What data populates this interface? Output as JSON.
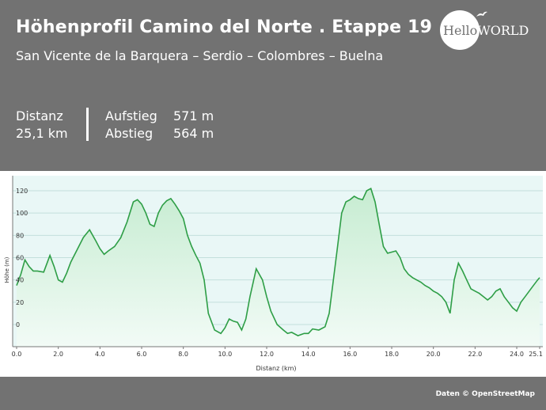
{
  "header": {
    "title": "Höhenprofil Camino del Norte . Etappe 19",
    "subtitle": "San Vicente de la Barquera – Serdio – Colombres – Buelna",
    "stats": {
      "distance_label": "Distanz",
      "distance_value": "25,1 km",
      "ascent_label": "Aufstieg",
      "ascent_value": "571 m",
      "descent_label": "Abstieg",
      "descent_value": "564 m"
    },
    "logo": {
      "hello": "Hello",
      "world": "WORLD"
    }
  },
  "footer": {
    "credit": "Daten © OpenStreetMap"
  },
  "colors": {
    "background_gray": "#727272",
    "line": "#2e9e46",
    "fill_top": "#c6ecd1",
    "plot_bg": "#e9f7f6"
  },
  "chart_data": {
    "type": "area",
    "title": "",
    "xlabel": "Distanz  (km)",
    "ylabel": "Höhe (m)",
    "xlim": [
      0,
      25.1
    ],
    "ylim": [
      -20,
      130
    ],
    "x_ticks": [
      0.0,
      2.0,
      4.0,
      6.0,
      8.0,
      10.0,
      12.0,
      14.0,
      16.0,
      18.0,
      20.0,
      22.0,
      24.0,
      25.1
    ],
    "x_tick_labels": [
      "0.0",
      "2.0",
      "4.0",
      "6.0",
      "8.0",
      "10.0",
      "12.0",
      "14.0",
      "16.0",
      "18.0",
      "20.0",
      "22.0",
      "24.0",
      "25.1"
    ],
    "y_ticks": [
      0,
      20,
      40,
      60,
      80,
      100,
      120
    ],
    "y_tick_labels": [
      "0",
      "20",
      "40",
      "60",
      "80",
      "100",
      "120"
    ],
    "grid": true,
    "series": [
      {
        "name": "",
        "x": [
          0.0,
          0.2,
          0.4,
          0.6,
          0.8,
          1.0,
          1.3,
          1.6,
          1.8,
          2.0,
          2.2,
          2.4,
          2.6,
          2.9,
          3.2,
          3.5,
          3.8,
          4.0,
          4.2,
          4.4,
          4.7,
          5.0,
          5.3,
          5.6,
          5.8,
          6.0,
          6.2,
          6.4,
          6.6,
          6.8,
          7.0,
          7.2,
          7.4,
          7.6,
          7.8,
          8.0,
          8.2,
          8.4,
          8.6,
          8.8,
          9.0,
          9.2,
          9.5,
          9.8,
          10.0,
          10.2,
          10.4,
          10.6,
          10.8,
          11.0,
          11.2,
          11.5,
          11.8,
          12.0,
          12.2,
          12.5,
          12.8,
          13.0,
          13.2,
          13.5,
          13.8,
          14.0,
          14.2,
          14.5,
          14.8,
          15.0,
          15.2,
          15.4,
          15.6,
          15.8,
          16.0,
          16.2,
          16.4,
          16.6,
          16.8,
          17.0,
          17.2,
          17.4,
          17.6,
          17.8,
          18.0,
          18.2,
          18.4,
          18.6,
          18.8,
          19.0,
          19.2,
          19.4,
          19.6,
          19.8,
          20.0,
          20.2,
          20.4,
          20.6,
          20.8,
          21.0,
          21.2,
          21.4,
          21.6,
          21.8,
          22.0,
          22.2,
          22.4,
          22.6,
          22.8,
          23.0,
          23.2,
          23.4,
          23.6,
          23.8,
          24.0,
          24.2,
          24.4,
          24.6,
          24.8,
          25.0,
          25.1
        ],
        "y": [
          35,
          45,
          58,
          52,
          48,
          48,
          47,
          62,
          52,
          40,
          38,
          46,
          56,
          67,
          78,
          85,
          75,
          68,
          63,
          66,
          70,
          78,
          92,
          110,
          112,
          108,
          100,
          90,
          88,
          100,
          107,
          111,
          113,
          108,
          102,
          95,
          80,
          70,
          62,
          55,
          40,
          10,
          -5,
          -8,
          -3,
          5,
          3,
          2,
          -5,
          5,
          25,
          50,
          40,
          25,
          12,
          0,
          -5,
          -8,
          -7,
          -10,
          -8,
          -8,
          -4,
          -5,
          -2,
          10,
          40,
          70,
          100,
          110,
          112,
          115,
          113,
          112,
          120,
          122,
          110,
          90,
          70,
          64,
          65,
          66,
          60,
          50,
          45,
          42,
          40,
          38,
          35,
          33,
          30,
          28,
          25,
          20,
          10,
          40,
          55,
          48,
          40,
          32,
          30,
          28,
          25,
          22,
          25,
          30,
          32,
          25,
          20,
          15,
          12,
          20,
          25,
          30,
          35,
          40,
          42
        ]
      }
    ]
  }
}
